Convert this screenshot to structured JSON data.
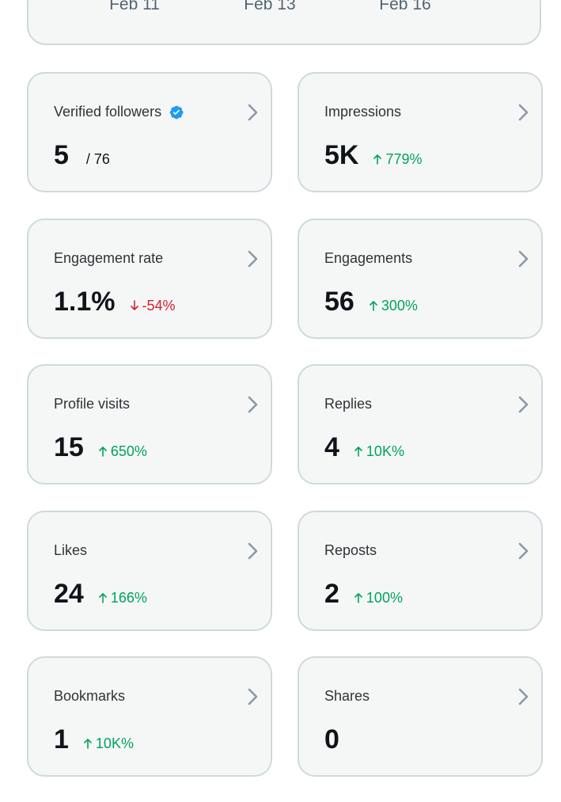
{
  "date_axis": {
    "labels": [
      "Feb 11",
      "Feb 13",
      "Feb 16"
    ]
  },
  "cards": [
    {
      "title": "Verified followers",
      "verified_badge": true,
      "value": "5",
      "sub_total": "/ 76",
      "delta": null,
      "direction": null
    },
    {
      "title": "Impressions",
      "verified_badge": false,
      "value": "5K",
      "sub_total": null,
      "delta": "779%",
      "direction": "up"
    },
    {
      "title": "Engagement rate",
      "verified_badge": false,
      "value": "1.1%",
      "sub_total": null,
      "delta": "-54%",
      "direction": "down"
    },
    {
      "title": "Engagements",
      "verified_badge": false,
      "value": "56",
      "sub_total": null,
      "delta": "300%",
      "direction": "up"
    },
    {
      "title": "Profile visits",
      "verified_badge": false,
      "value": "15",
      "sub_total": null,
      "delta": "650%",
      "direction": "up"
    },
    {
      "title": "Replies",
      "verified_badge": false,
      "value": "4",
      "sub_total": null,
      "delta": "10K%",
      "direction": "up"
    },
    {
      "title": "Likes",
      "verified_badge": false,
      "value": "24",
      "sub_total": null,
      "delta": "166%",
      "direction": "up"
    },
    {
      "title": "Reposts",
      "verified_badge": false,
      "value": "2",
      "sub_total": null,
      "delta": "100%",
      "direction": "up"
    },
    {
      "title": "Bookmarks",
      "verified_badge": false,
      "value": "1",
      "sub_total": null,
      "delta": "10K%",
      "direction": "up"
    },
    {
      "title": "Shares",
      "verified_badge": false,
      "value": "0",
      "sub_total": null,
      "delta": null,
      "direction": null
    }
  ],
  "colors": {
    "up": "#00a35c",
    "down": "#d3212d",
    "verified": "#1d9bf0",
    "chevron": "#8b98a5"
  }
}
